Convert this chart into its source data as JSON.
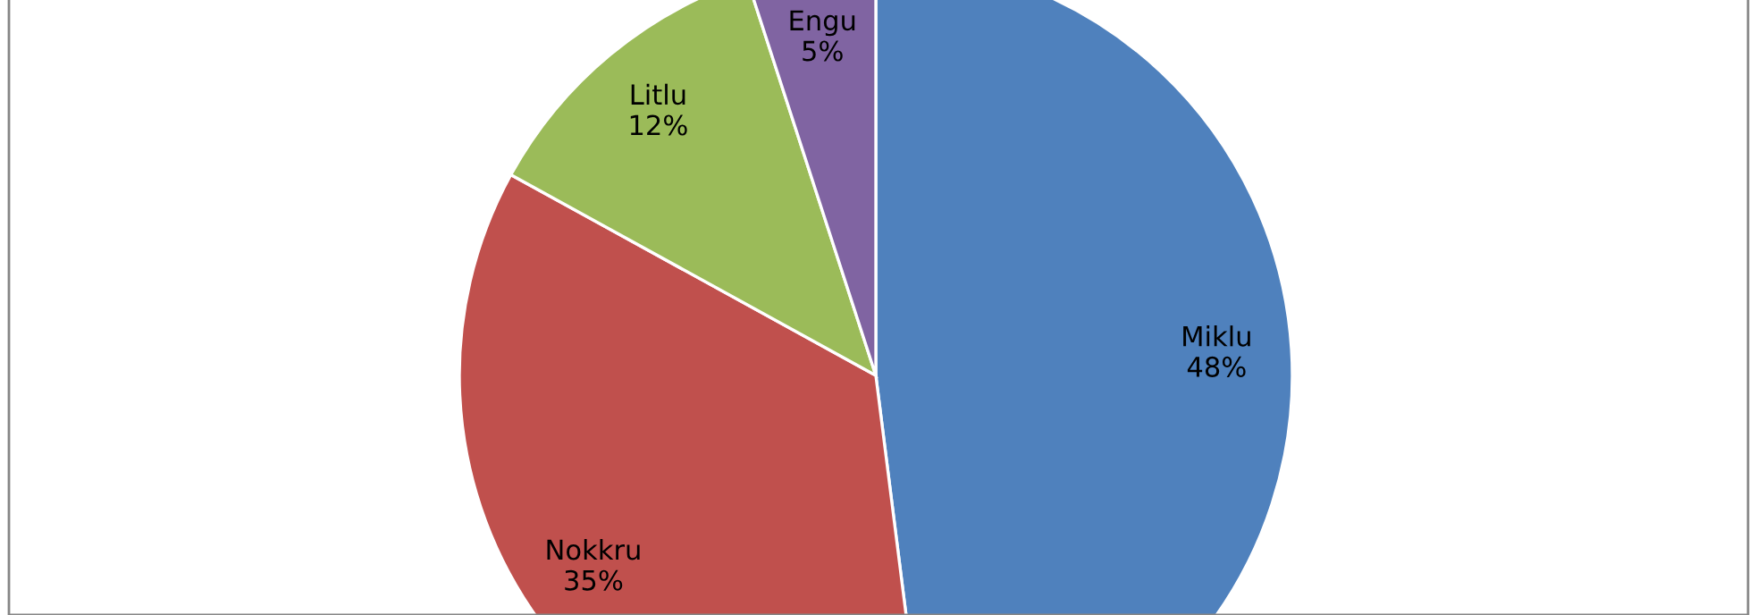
{
  "chart_data": {
    "type": "pie",
    "categories": [
      "Miklu",
      "Nokkru",
      "Litlu",
      "Engu"
    ],
    "values": [
      48,
      35,
      12,
      5
    ],
    "value_labels": [
      "48%",
      "35%",
      "12%",
      "5%"
    ],
    "colors": [
      "#4f81bd",
      "#c0504d",
      "#9bbb59",
      "#8064a2"
    ],
    "legend": false
  }
}
